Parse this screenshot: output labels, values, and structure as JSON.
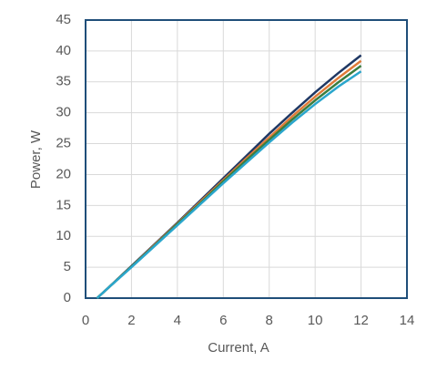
{
  "chart_data": {
    "type": "line",
    "xlabel": "Current, A",
    "ylabel": "Power, W",
    "x": [
      0.5,
      1,
      2,
      3,
      4,
      5,
      6,
      7,
      8,
      9,
      10,
      11,
      12
    ],
    "series": [
      {
        "color": "#1f3864",
        "values": [
          0,
          1.7,
          5.2,
          8.7,
          12.2,
          15.8,
          19.4,
          23.0,
          26.6,
          30.0,
          33.3,
          36.4,
          39.3
        ]
      },
      {
        "color": "#e07b39",
        "values": [
          0,
          1.7,
          5.1,
          8.6,
          12.1,
          15.6,
          19.1,
          22.6,
          26.0,
          29.4,
          32.6,
          35.6,
          38.4
        ]
      },
      {
        "color": "#3b7d3f",
        "values": [
          0,
          1.7,
          5.1,
          8.5,
          12.0,
          15.4,
          18.9,
          22.3,
          25.6,
          28.9,
          32.0,
          34.9,
          37.6
        ]
      },
      {
        "color": "#2aa6cc",
        "values": [
          0,
          1.7,
          5.0,
          8.4,
          11.8,
          15.2,
          18.6,
          21.9,
          25.2,
          28.4,
          31.4,
          34.2,
          36.7
        ]
      }
    ],
    "xlim": [
      0,
      14
    ],
    "xticks": [
      0,
      2,
      4,
      6,
      8,
      10,
      12,
      14
    ],
    "ylim": [
      0,
      45
    ],
    "yticks": [
      0,
      5,
      10,
      15,
      20,
      25,
      30,
      35,
      40,
      45
    ],
    "grid": true
  }
}
